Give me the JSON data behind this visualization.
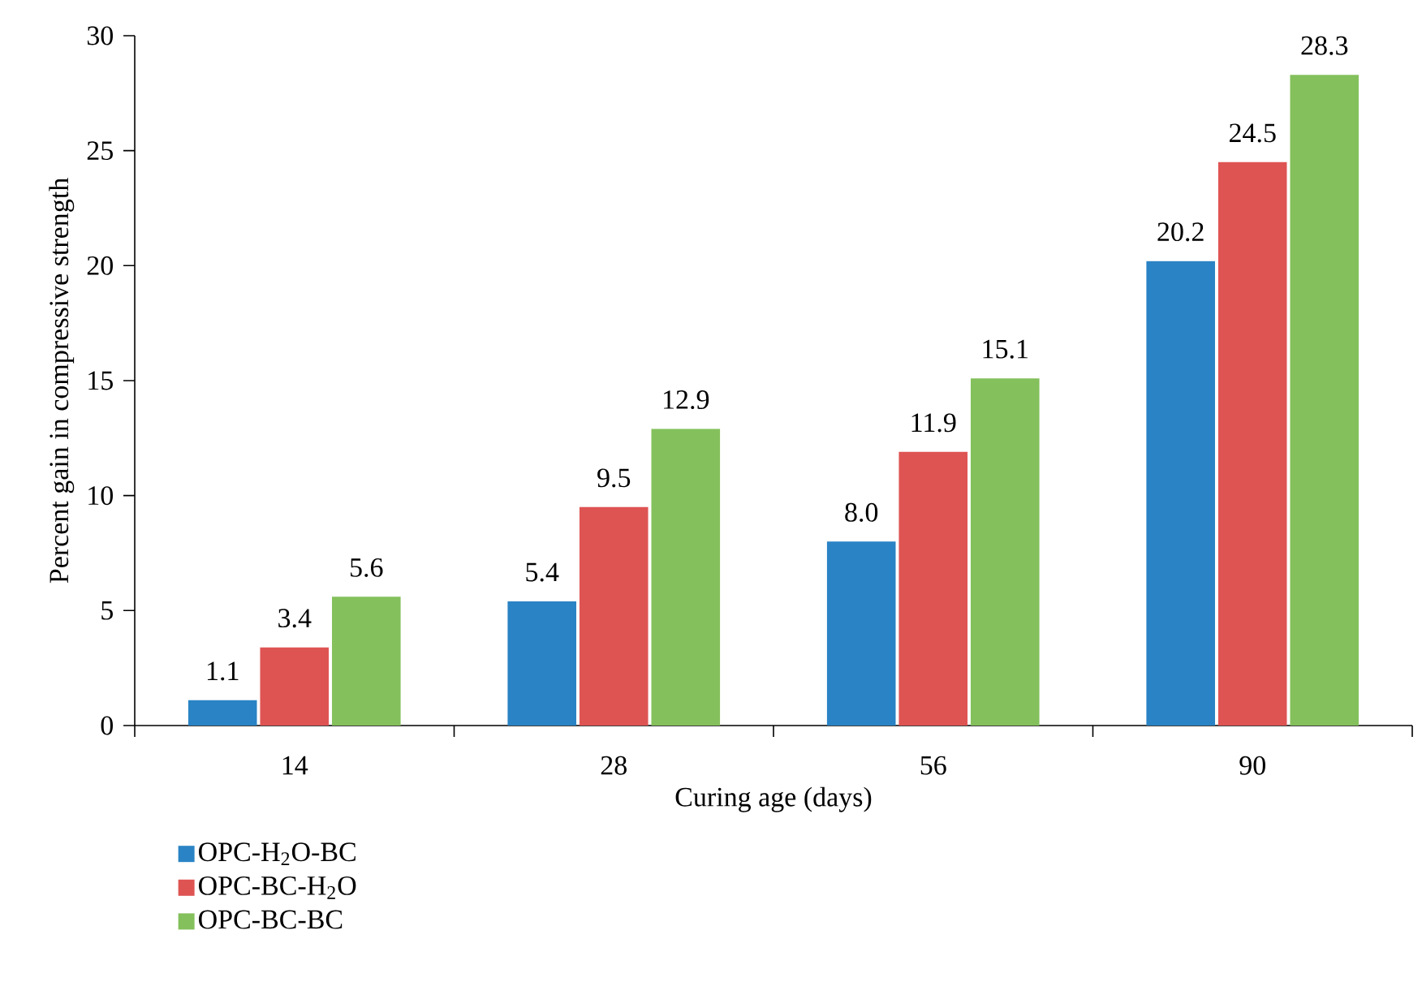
{
  "chart_data": {
    "type": "bar",
    "xlabel": "Curing age (days)",
    "ylabel": "Percent gain in compressive strength",
    "categories": [
      "14",
      "28",
      "56",
      "90"
    ],
    "series": [
      {
        "name": "OPC-H$_{2}$O-BC",
        "color": "#2a83c4",
        "values": [
          1.1,
          5.4,
          8.0,
          20.2
        ],
        "value_labels": [
          "1.1",
          "5.4",
          "8.0",
          "20.2"
        ]
      },
      {
        "name": "OPC-BC-H$_{2}$O",
        "color": "#de5453",
        "values": [
          3.4,
          9.5,
          11.9,
          24.5
        ],
        "value_labels": [
          "3.4",
          "9.5",
          "11.9",
          "24.5"
        ]
      },
      {
        "name": "OPC-BC-BC",
        "color": "#84c05c",
        "values": [
          5.6,
          12.9,
          15.1,
          28.3
        ],
        "value_labels": [
          "5.6",
          "12.9",
          "15.1",
          "28.3"
        ]
      }
    ],
    "ylim": [
      0,
      30
    ],
    "yticks": [
      0,
      5,
      10,
      15,
      20,
      25,
      30
    ],
    "legend": "bottom",
    "grid": false,
    "data_labels": true
  }
}
